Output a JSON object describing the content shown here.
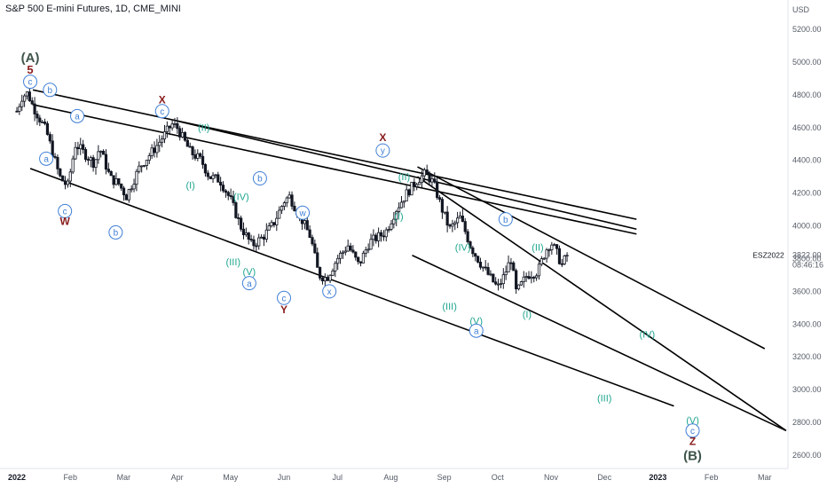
{
  "title": "S&P 500 E-mini Futures, 1D, CME_MINI",
  "chart_data": {
    "type": "candlestick",
    "title": "S&P 500 E-mini Futures, 1D, CME_MINI",
    "currency": "USD",
    "ylim": [
      2500,
      5300
    ],
    "y_ticks": [
      2600,
      2800,
      3000,
      3200,
      3400,
      3600,
      3800,
      4000,
      4200,
      4400,
      4600,
      4800,
      5000,
      5200
    ],
    "y_tick_labels": [
      "2600.00",
      "2800.00",
      "3000.00",
      "3200.00",
      "3400.00",
      "3600.00",
      "3800.00",
      "4000.00",
      "4200.00",
      "4400.00",
      "4600.00",
      "4800.00",
      "5000.00",
      "5200.00"
    ],
    "x_ticks": [
      {
        "label": "2022",
        "t": 0,
        "bold": true
      },
      {
        "label": "Feb",
        "t": 1
      },
      {
        "label": "Mar",
        "t": 2
      },
      {
        "label": "Apr",
        "t": 3
      },
      {
        "label": "May",
        "t": 4
      },
      {
        "label": "Jun",
        "t": 5
      },
      {
        "label": "Jul",
        "t": 6
      },
      {
        "label": "Aug",
        "t": 7
      },
      {
        "label": "Sep",
        "t": 8
      },
      {
        "label": "Oct",
        "t": 9
      },
      {
        "label": "Nov",
        "t": 10
      },
      {
        "label": "Dec",
        "t": 11
      },
      {
        "label": "2023",
        "t": 12,
        "bold": true
      },
      {
        "label": "Feb",
        "t": 13
      },
      {
        "label": "Mar",
        "t": 14
      }
    ],
    "price_anchors": [
      [
        0.0,
        4700
      ],
      [
        0.1,
        4790
      ],
      [
        0.2,
        4810
      ],
      [
        0.3,
        4730
      ],
      [
        0.55,
        4580
      ],
      [
        0.8,
        4300
      ],
      [
        0.95,
        4240
      ],
      [
        1.1,
        4500
      ],
      [
        1.3,
        4430
      ],
      [
        1.45,
        4380
      ],
      [
        1.55,
        4480
      ],
      [
        1.75,
        4290
      ],
      [
        1.9,
        4260
      ],
      [
        2.05,
        4180
      ],
      [
        2.3,
        4360
      ],
      [
        2.6,
        4480
      ],
      [
        2.9,
        4620
      ],
      [
        3.0,
        4600
      ],
      [
        3.25,
        4450
      ],
      [
        3.45,
        4400
      ],
      [
        3.6,
        4300
      ],
      [
        3.8,
        4280
      ],
      [
        4.0,
        4160
      ],
      [
        4.2,
        3990
      ],
      [
        4.4,
        3880
      ],
      [
        4.6,
        3930
      ],
      [
        4.8,
        4010
      ],
      [
        5.0,
        4150
      ],
      [
        5.1,
        4180
      ],
      [
        5.3,
        4060
      ],
      [
        5.5,
        3930
      ],
      [
        5.65,
        3700
      ],
      [
        5.8,
        3680
      ],
      [
        6.0,
        3800
      ],
      [
        6.2,
        3880
      ],
      [
        6.4,
        3760
      ],
      [
        6.6,
        3900
      ],
      [
        6.9,
        3960
      ],
      [
        7.1,
        4100
      ],
      [
        7.3,
        4200
      ],
      [
        7.5,
        4280
      ],
      [
        7.65,
        4320
      ],
      [
        7.8,
        4260
      ],
      [
        7.95,
        4110
      ],
      [
        8.1,
        3980
      ],
      [
        8.3,
        4050
      ],
      [
        8.5,
        3870
      ],
      [
        8.7,
        3760
      ],
      [
        8.85,
        3690
      ],
      [
        9.0,
        3620
      ],
      [
        9.1,
        3680
      ],
      [
        9.25,
        3800
      ],
      [
        9.35,
        3590
      ],
      [
        9.55,
        3700
      ],
      [
        9.75,
        3720
      ],
      [
        9.9,
        3850
      ],
      [
        10.0,
        3900
      ],
      [
        10.1,
        3840
      ],
      [
        10.2,
        3760
      ],
      [
        10.3,
        3820
      ]
    ],
    "price_range_t": [
      0.0,
      10.3
    ],
    "trendlines": [
      {
        "t1": 0.3,
        "p1": 4830,
        "t2": 11.6,
        "p2": 4040,
        "color": "#000000"
      },
      {
        "t1": 0.3,
        "p1": 4740,
        "t2": 11.6,
        "p2": 3950,
        "color": "#000000"
      },
      {
        "t1": 3.0,
        "p1": 4640,
        "t2": 11.6,
        "p2": 3980,
        "color": "#000000"
      },
      {
        "t1": 7.5,
        "p1": 4360,
        "t2": 14.0,
        "p2": 3250,
        "color": "#000000"
      },
      {
        "t1": 7.5,
        "p1": 4300,
        "t2": 14.4,
        "p2": 2750,
        "color": "#000000"
      },
      {
        "t1": 7.4,
        "p1": 3820,
        "t2": 14.4,
        "p2": 2750,
        "color": "#000000"
      },
      {
        "t1": 0.25,
        "p1": 4350,
        "t2": 12.3,
        "p2": 2900,
        "color": "#000000"
      }
    ],
    "annotations": [
      {
        "text": "(A)",
        "t": 0.25,
        "p": 5030,
        "color": "#3e5449",
        "size": 15,
        "bold": true
      },
      {
        "text": "5",
        "t": 0.25,
        "p": 4955,
        "color": "#8a1c1c",
        "size": 13,
        "bold": true
      },
      {
        "text": "c",
        "t": 0.25,
        "p": 4880,
        "color": "#3f7fd6",
        "size": 10,
        "circle": true
      },
      {
        "text": "b",
        "t": 0.62,
        "p": 4830,
        "color": "#3f7fd6",
        "size": 10,
        "circle": true
      },
      {
        "text": "a",
        "t": 1.13,
        "p": 4670,
        "color": "#3f7fd6",
        "size": 10,
        "circle": true
      },
      {
        "text": "a",
        "t": 0.55,
        "p": 4410,
        "color": "#3f7fd6",
        "size": 10,
        "circle": true
      },
      {
        "text": "c",
        "t": 0.9,
        "p": 4090,
        "color": "#3f7fd6",
        "size": 10,
        "circle": true
      },
      {
        "text": "W",
        "t": 0.9,
        "p": 4030,
        "color": "#8a1c1c",
        "size": 12,
        "bold": true
      },
      {
        "text": "b",
        "t": 1.85,
        "p": 3960,
        "color": "#3f7fd6",
        "size": 10,
        "circle": true
      },
      {
        "text": "X",
        "t": 2.72,
        "p": 4770,
        "color": "#8a1c1c",
        "size": 12,
        "bold": true
      },
      {
        "text": "c",
        "t": 2.72,
        "p": 4700,
        "color": "#3f7fd6",
        "size": 10,
        "circle": true
      },
      {
        "text": "(II)",
        "t": 3.5,
        "p": 4600,
        "color": "#1fa58e",
        "size": 11
      },
      {
        "text": "(I)",
        "t": 3.25,
        "p": 4250,
        "color": "#1fa58e",
        "size": 11
      },
      {
        "text": "(IV)",
        "t": 4.2,
        "p": 4180,
        "color": "#1fa58e",
        "size": 11
      },
      {
        "text": "b",
        "t": 4.55,
        "p": 4290,
        "color": "#3f7fd6",
        "size": 10,
        "circle": true
      },
      {
        "text": "(III)",
        "t": 4.05,
        "p": 3780,
        "color": "#1fa58e",
        "size": 11
      },
      {
        "text": "(V)",
        "t": 4.35,
        "p": 3720,
        "color": "#1fa58e",
        "size": 11
      },
      {
        "text": "a",
        "t": 4.35,
        "p": 3650,
        "color": "#3f7fd6",
        "size": 10,
        "circle": true
      },
      {
        "text": "w",
        "t": 5.35,
        "p": 4080,
        "color": "#3f7fd6",
        "size": 10,
        "circle": true
      },
      {
        "text": "c",
        "t": 5.0,
        "p": 3560,
        "color": "#3f7fd6",
        "size": 10,
        "circle": true
      },
      {
        "text": "Y",
        "t": 5.0,
        "p": 3490,
        "color": "#8a1c1c",
        "size": 12,
        "bold": true
      },
      {
        "text": "x",
        "t": 5.85,
        "p": 3600,
        "color": "#3f7fd6",
        "size": 10,
        "circle": true
      },
      {
        "text": "X",
        "t": 6.85,
        "p": 4540,
        "color": "#8a1c1c",
        "size": 12,
        "bold": true
      },
      {
        "text": "y",
        "t": 6.85,
        "p": 4460,
        "color": "#3f7fd6",
        "size": 10,
        "circle": true
      },
      {
        "text": "(II)",
        "t": 7.25,
        "p": 4300,
        "color": "#1fa58e",
        "size": 11
      },
      {
        "text": "(I)",
        "t": 7.15,
        "p": 4060,
        "color": "#1fa58e",
        "size": 11
      },
      {
        "text": "(IV)",
        "t": 8.35,
        "p": 3870,
        "color": "#1fa58e",
        "size": 11
      },
      {
        "text": "(III)",
        "t": 8.1,
        "p": 3510,
        "color": "#1fa58e",
        "size": 11
      },
      {
        "text": "(V)",
        "t": 8.6,
        "p": 3420,
        "color": "#1fa58e",
        "size": 11
      },
      {
        "text": "a",
        "t": 8.6,
        "p": 3360,
        "color": "#3f7fd6",
        "size": 10,
        "circle": true
      },
      {
        "text": "b",
        "t": 9.15,
        "p": 4040,
        "color": "#3f7fd6",
        "size": 10,
        "circle": true
      },
      {
        "text": "(II)",
        "t": 9.75,
        "p": 3870,
        "color": "#1fa58e",
        "size": 11
      },
      {
        "text": "(I)",
        "t": 9.55,
        "p": 3460,
        "color": "#1fa58e",
        "size": 11
      },
      {
        "text": "(IV)",
        "t": 11.8,
        "p": 3340,
        "color": "#1fa58e",
        "size": 11
      },
      {
        "text": "(III)",
        "t": 11.0,
        "p": 2950,
        "color": "#1fa58e",
        "size": 11
      },
      {
        "text": "(V)",
        "t": 12.65,
        "p": 2815,
        "color": "#1fa58e",
        "size": 11
      },
      {
        "text": "c",
        "t": 12.65,
        "p": 2750,
        "color": "#3f7fd6",
        "size": 10,
        "circle": true
      },
      {
        "text": "Z",
        "t": 12.65,
        "p": 2685,
        "color": "#8a1c1c",
        "size": 12,
        "bold": true
      },
      {
        "text": "(B)",
        "t": 12.65,
        "p": 2600,
        "color": "#3e5449",
        "size": 15,
        "bold": true
      }
    ],
    "price_label": {
      "symbol": "ESZ2022",
      "value": "3822.00",
      "countdown": "08:46:16"
    }
  }
}
